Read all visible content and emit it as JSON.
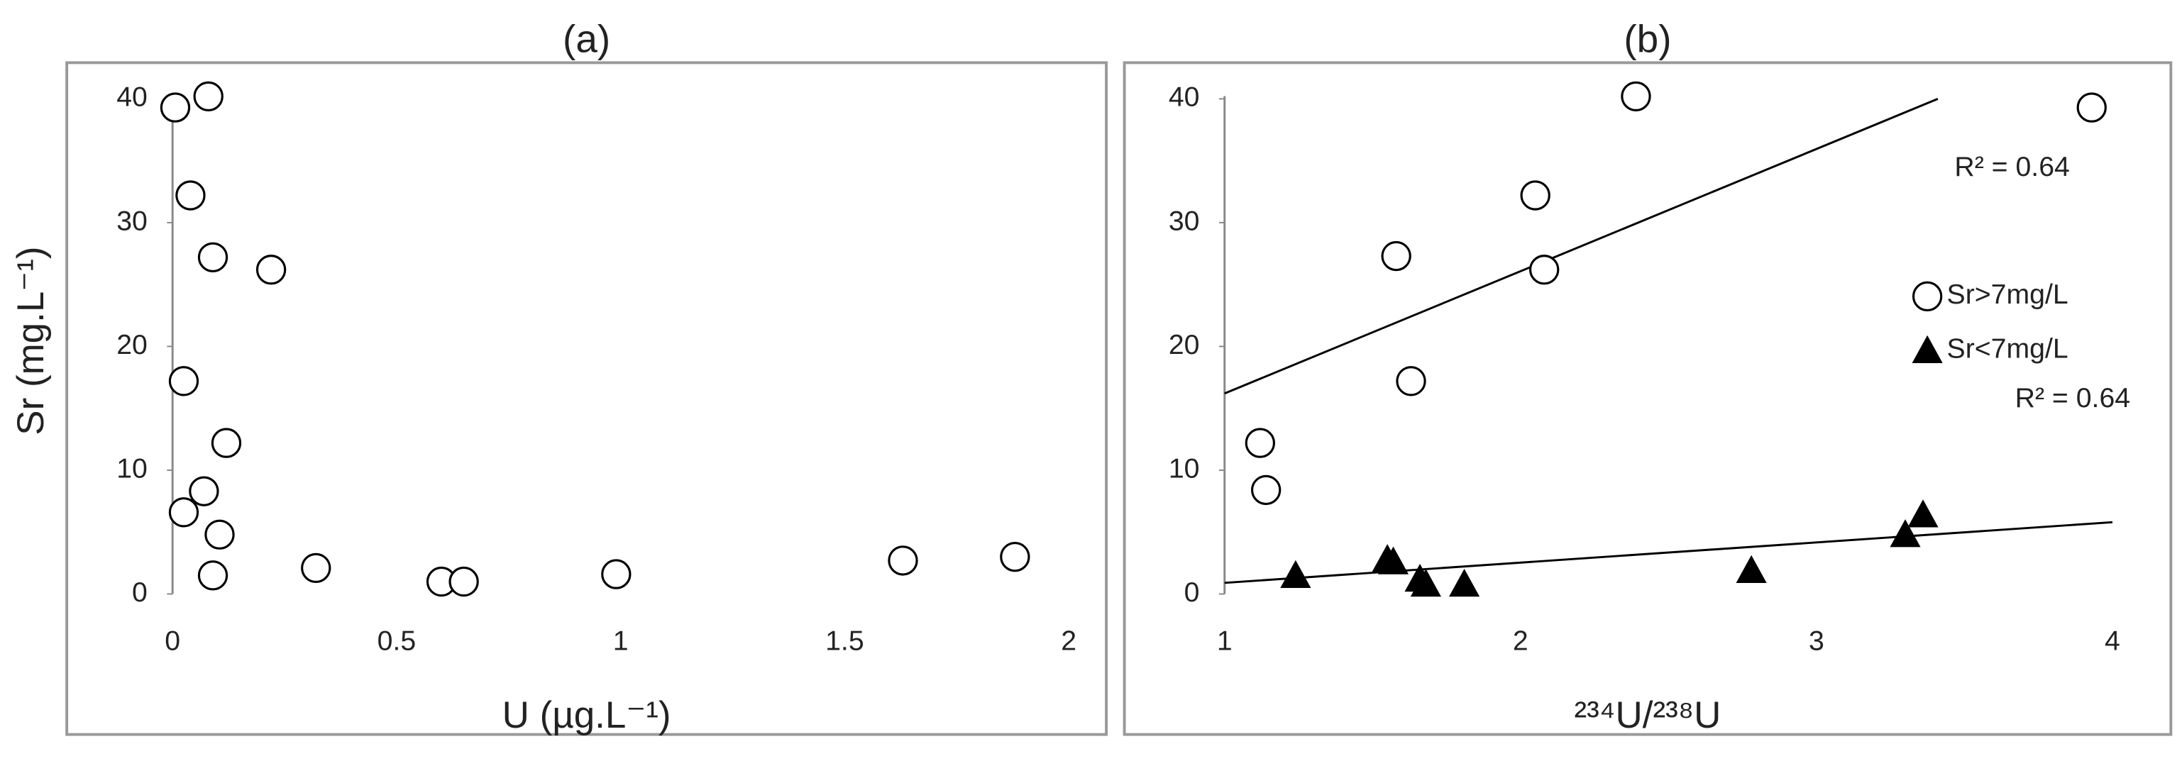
{
  "chart_data": [
    {
      "type": "scatter",
      "title": "(a)",
      "x_label": "U (µg.L⁻¹)",
      "y_label": "Sr (mg.L⁻¹)",
      "xlim": [
        0,
        2
      ],
      "ylim": [
        0,
        40
      ],
      "xticks": [
        0,
        0.5,
        1,
        1.5,
        2
      ],
      "yticks": [
        0,
        10,
        20,
        30,
        40
      ],
      "series": [
        {
          "marker": "circle",
          "color": "#000000",
          "x": [
            0.006,
            0.08,
            0.04,
            0.09,
            0.22,
            0.025,
            0.12,
            0.07,
            0.025,
            0.105,
            0.09,
            0.32,
            0.6,
            0.65,
            0.99,
            1.63,
            1.88
          ],
          "values": [
            39.3,
            40.2,
            32.2,
            27.2,
            26.2,
            17.2,
            12.2,
            8.3,
            6.6,
            4.8,
            1.5,
            2.1,
            1.0,
            1.0,
            1.6,
            2.7,
            3.0
          ]
        }
      ]
    },
    {
      "type": "scatter",
      "title": "(b)",
      "x_label": "²³⁴U/²³⁸U",
      "xlim": [
        1,
        4
      ],
      "ylim": [
        0,
        40
      ],
      "xticks": [
        1,
        2,
        3,
        4
      ],
      "yticks": [
        0,
        10,
        20,
        30,
        40
      ],
      "legend": "right",
      "series": [
        {
          "name": "Sr>7mg/L",
          "marker": "circle",
          "color": "#000000",
          "x": [
            1.12,
            1.14,
            1.58,
            1.63,
            2.05,
            2.08,
            2.39,
            3.93
          ],
          "values": [
            12.2,
            8.4,
            27.3,
            17.2,
            32.2,
            26.2,
            40.2,
            39.3
          ],
          "trendline": {
            "x": [
              1.0,
              3.41
            ],
            "values": [
              16.2,
              40
            ],
            "label": "R² = 0.64"
          }
        },
        {
          "name": "Sr<7mg/L",
          "marker": "triangle",
          "color": "#000000",
          "x": [
            1.24,
            1.55,
            1.57,
            1.66,
            1.68,
            1.81,
            2.78,
            3.3,
            3.36
          ],
          "values": [
            1.5,
            2.8,
            2.6,
            1.2,
            0.8,
            0.8,
            1.9,
            4.8,
            6.4
          ],
          "trendline": {
            "x": [
              1.0,
              4.0
            ],
            "values": [
              0.9,
              5.8
            ],
            "label": "R² = 0.64"
          }
        }
      ]
    }
  ]
}
